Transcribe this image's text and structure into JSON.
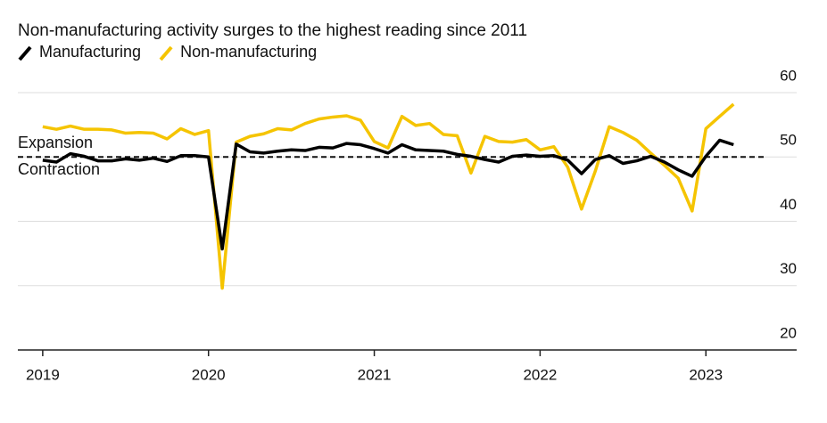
{
  "chart_data": {
    "type": "line",
    "title": "Non-manufacturing activity surges to the highest reading since 2011",
    "annotations": [
      "Expansion",
      "Contraction"
    ],
    "reference_line": 50,
    "x": [
      2019,
      2019.083,
      2019.167,
      2019.25,
      2019.333,
      2019.417,
      2019.5,
      2019.583,
      2019.667,
      2019.75,
      2019.833,
      2019.917,
      2020,
      2020.083,
      2020.167,
      2020.25,
      2020.333,
      2020.417,
      2020.5,
      2020.583,
      2020.667,
      2020.75,
      2020.833,
      2020.917,
      2021,
      2021.083,
      2021.167,
      2021.25,
      2021.333,
      2021.417,
      2021.5,
      2021.583,
      2021.667,
      2021.75,
      2021.833,
      2021.917,
      2022,
      2022.083,
      2022.167,
      2022.25,
      2022.333,
      2022.417,
      2022.5,
      2022.583,
      2022.667,
      2022.75,
      2022.833,
      2022.917,
      2023,
      2023.083,
      2023.167
    ],
    "series": [
      {
        "name": "Manufacturing",
        "color": "#000000",
        "values": [
          49.5,
          49.2,
          50.5,
          50.1,
          49.4,
          49.4,
          49.7,
          49.5,
          49.8,
          49.3,
          50.2,
          50.2,
          50.0,
          35.7,
          52.0,
          50.8,
          50.6,
          50.9,
          51.1,
          51.0,
          51.5,
          51.4,
          52.1,
          51.9,
          51.3,
          50.6,
          51.9,
          51.1,
          51.0,
          50.9,
          50.4,
          50.1,
          49.6,
          49.2,
          50.1,
          50.3,
          50.1,
          50.2,
          49.5,
          47.4,
          49.6,
          50.2,
          49.0,
          49.4,
          50.1,
          49.2,
          48.0,
          47.0,
          50.1,
          52.6,
          51.9
        ]
      },
      {
        "name": "Non-manufacturing",
        "color": "#f5c400",
        "values": [
          54.7,
          54.3,
          54.8,
          54.3,
          54.3,
          54.2,
          53.7,
          53.8,
          53.7,
          52.8,
          54.4,
          53.5,
          54.1,
          29.6,
          52.3,
          53.2,
          53.6,
          54.4,
          54.2,
          55.2,
          55.9,
          56.2,
          56.4,
          55.7,
          52.4,
          51.4,
          56.3,
          54.9,
          55.2,
          53.5,
          53.3,
          47.5,
          53.2,
          52.4,
          52.3,
          52.7,
          51.1,
          51.6,
          48.4,
          41.9,
          47.8,
          54.7,
          53.8,
          52.6,
          50.6,
          48.7,
          46.7,
          41.6,
          54.4,
          56.3,
          58.2
        ]
      }
    ],
    "xlim": [
      2018.85,
      2023.37
    ],
    "xticks": [
      2019,
      2020,
      2021,
      2022,
      2023
    ],
    "ylim": [
      20,
      60
    ],
    "yticks": [
      20,
      30,
      40,
      50,
      60
    ],
    "grid": true
  }
}
